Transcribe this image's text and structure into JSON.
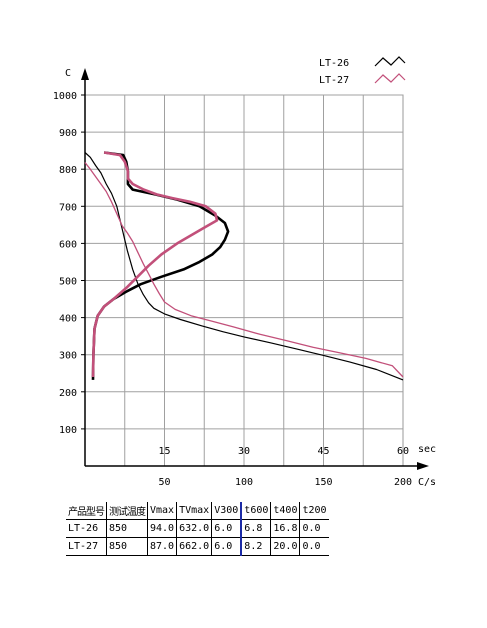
{
  "chart_data": {
    "type": "line",
    "y_axis": {
      "unit_label": "C",
      "ticks": [
        100,
        200,
        300,
        400,
        500,
        600,
        700,
        800,
        900,
        1000
      ],
      "range": [
        0,
        1000
      ]
    },
    "x_axis_time": {
      "unit_label": "sec",
      "ticks": [
        15,
        30,
        45,
        60
      ],
      "range": [
        0,
        60
      ]
    },
    "x_axis_rate": {
      "unit_label": "C/s",
      "ticks": [
        50,
        100,
        150,
        200
      ],
      "range": [
        0,
        200
      ]
    },
    "grid": true,
    "legend": {
      "placement": "top-right"
    },
    "series": [
      {
        "name": "LT-26",
        "color": "#000000",
        "cooling_curve": [
          [
            0,
            845
          ],
          [
            1,
            832
          ],
          [
            2,
            810
          ],
          [
            3,
            790
          ],
          [
            4,
            760
          ],
          [
            5,
            735
          ],
          [
            6,
            700
          ],
          [
            7,
            640
          ],
          [
            8,
            580
          ],
          [
            9,
            530
          ],
          [
            10,
            490
          ],
          [
            11,
            462
          ],
          [
            12,
            440
          ],
          [
            13,
            425
          ],
          [
            15,
            410
          ],
          [
            18,
            395
          ],
          [
            22,
            378
          ],
          [
            26,
            362
          ],
          [
            30,
            348
          ],
          [
            35,
            332
          ],
          [
            40,
            315
          ],
          [
            45,
            298
          ],
          [
            50,
            280
          ],
          [
            55,
            260
          ],
          [
            60,
            232
          ]
        ],
        "rate_curve": [
          [
            5,
            232
          ],
          [
            5.3,
            300
          ],
          [
            6,
            370
          ],
          [
            8,
            405
          ],
          [
            12,
            430
          ],
          [
            18,
            450
          ],
          [
            26,
            470
          ],
          [
            35,
            490
          ],
          [
            48,
            510
          ],
          [
            62,
            530
          ],
          [
            72,
            550
          ],
          [
            80,
            570
          ],
          [
            85,
            590
          ],
          [
            88,
            610
          ],
          [
            90,
            632
          ],
          [
            88,
            655
          ],
          [
            82,
            675
          ],
          [
            72,
            700
          ],
          [
            58,
            718
          ],
          [
            44,
            732
          ],
          [
            30,
            745
          ],
          [
            27,
            760
          ],
          [
            27,
            775
          ],
          [
            27,
            795
          ],
          [
            26,
            820
          ],
          [
            24,
            838
          ],
          [
            12,
            845
          ]
        ]
      },
      {
        "name": "LT-27",
        "color": "#c2507a",
        "cooling_curve": [
          [
            0,
            818
          ],
          [
            1,
            800
          ],
          [
            2,
            780
          ],
          [
            3,
            760
          ],
          [
            4,
            740
          ],
          [
            5,
            712
          ],
          [
            6,
            680
          ],
          [
            7,
            648
          ],
          [
            8,
            628
          ],
          [
            9,
            605
          ],
          [
            10,
            575
          ],
          [
            11,
            545
          ],
          [
            12,
            518
          ],
          [
            13,
            490
          ],
          [
            14,
            465
          ],
          [
            15,
            442
          ],
          [
            17,
            422
          ],
          [
            20,
            405
          ],
          [
            24,
            390
          ],
          [
            28,
            375
          ],
          [
            33,
            355
          ],
          [
            38,
            338
          ],
          [
            43,
            320
          ],
          [
            48,
            305
          ],
          [
            53,
            290
          ],
          [
            58,
            270
          ],
          [
            60,
            240
          ]
        ],
        "rate_curve": [
          [
            5,
            240
          ],
          [
            5.3,
            300
          ],
          [
            6,
            370
          ],
          [
            8,
            405
          ],
          [
            12,
            430
          ],
          [
            18,
            450
          ],
          [
            26,
            480
          ],
          [
            33,
            510
          ],
          [
            40,
            540
          ],
          [
            48,
            570
          ],
          [
            58,
            600
          ],
          [
            68,
            625
          ],
          [
            76,
            645
          ],
          [
            83,
            662
          ],
          [
            82,
            680
          ],
          [
            76,
            700
          ],
          [
            66,
            712
          ],
          [
            55,
            722
          ],
          [
            45,
            732
          ],
          [
            37,
            745
          ],
          [
            30,
            760
          ],
          [
            27,
            775
          ],
          [
            27,
            795
          ],
          [
            25,
            820
          ],
          [
            22,
            838
          ],
          [
            12,
            845
          ]
        ]
      }
    ]
  },
  "table": {
    "headers": [
      "产品型号",
      "测试温度",
      "Vmax",
      "TVmax",
      "V300",
      "t600",
      "t400",
      "t200"
    ],
    "rows": [
      [
        "LT-26",
        "850",
        "94.0",
        "632.0",
        "6.0",
        "6.8",
        "16.8",
        "0.0"
      ],
      [
        "LT-27",
        "850",
        "87.0",
        "662.0",
        "6.0",
        "8.2",
        "20.0",
        "0.0"
      ]
    ]
  }
}
